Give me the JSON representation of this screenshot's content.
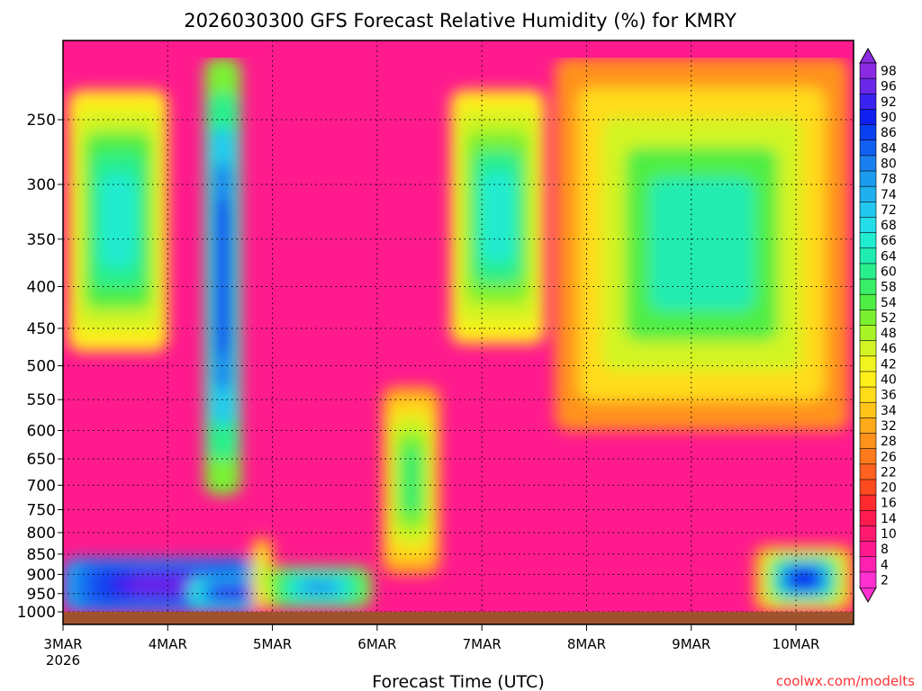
{
  "chart_data": {
    "type": "heatmap",
    "title": "2026030300 GFS Forecast Relative Humidity (%) for KMRY",
    "xlabel": "Forecast Time (UTC)",
    "ylabel": "",
    "x_ticks": [
      "3MAR",
      "4MAR",
      "5MAR",
      "6MAR",
      "7MAR",
      "8MAR",
      "9MAR",
      "10MAR"
    ],
    "x_sub": "2026",
    "x_range_days": [
      0,
      7.55
    ],
    "y_ticks": [
      250,
      300,
      350,
      400,
      450,
      500,
      550,
      600,
      650,
      700,
      750,
      800,
      850,
      900,
      950,
      1000
    ],
    "y_range_hpa": [
      200,
      1000
    ],
    "y_scale": "log-pressure",
    "grid": true,
    "colorbar": {
      "labels": [
        98,
        96,
        92,
        90,
        86,
        84,
        80,
        78,
        74,
        72,
        68,
        66,
        64,
        60,
        58,
        54,
        52,
        48,
        46,
        42,
        40,
        36,
        34,
        32,
        28,
        26,
        22,
        20,
        16,
        14,
        10,
        8,
        4,
        2
      ],
      "colors": [
        "#8a2be2",
        "#6a28e8",
        "#3a22f0",
        "#1020f0",
        "#0a40f0",
        "#1260f0",
        "#1a80f0",
        "#1c9cf0",
        "#20b0f0",
        "#22c8f0",
        "#24dde8",
        "#20ecd0",
        "#20ecb0",
        "#28ee8c",
        "#3aee6a",
        "#50ee44",
        "#7af030",
        "#a8f428",
        "#d2f424",
        "#f2f420",
        "#ffee1a",
        "#ffdc1a",
        "#ffc41a",
        "#ffaa1a",
        "#ff921a",
        "#ff7a1c",
        "#ff621e",
        "#ff4a20",
        "#ff2a30",
        "#ff1a50",
        "#ff1a6e",
        "#ff1a8e",
        "#ff22b0",
        "#ff30d0"
      ]
    },
    "ground_band": "surface",
    "features": [
      {
        "name": "low-level-moist-layer",
        "x": [
          0,
          1.95
        ],
        "p": [
          860,
          1000
        ],
        "rh": [
          78,
          96
        ]
      },
      {
        "name": "moist-layer-4mar",
        "x": [
          1.2,
          2.05
        ],
        "p": [
          905,
          990
        ],
        "rh": [
          66,
          92
        ]
      },
      {
        "name": "dry-slot",
        "x": [
          1.8,
          2.0
        ],
        "p": [
          810,
          1000
        ],
        "rh": [
          30,
          48
        ]
      },
      {
        "name": "upper-moist-band-1",
        "x": [
          0.05,
          1.0
        ],
        "p": [
          230,
          480
        ],
        "rh": [
          40,
          66
        ]
      },
      {
        "name": "deep-plume-4mar",
        "x": [
          1.35,
          1.7
        ],
        "p": [
          210,
          720
        ],
        "rh": [
          50,
          90
        ]
      },
      {
        "name": "moist-5mar-low",
        "x": [
          1.95,
          2.95
        ],
        "p": [
          880,
          990
        ],
        "rh": [
          50,
          76
        ]
      },
      {
        "name": "plume-6mar",
        "x": [
          3.05,
          3.6
        ],
        "p": [
          530,
          900
        ],
        "rh": [
          30,
          58
        ]
      },
      {
        "name": "upper-band-7mar",
        "x": [
          3.7,
          4.6
        ],
        "p": [
          230,
          470
        ],
        "rh": [
          38,
          66
        ]
      },
      {
        "name": "wet-upper-8to10mar",
        "x": [
          4.7,
          7.5
        ],
        "p": [
          210,
          600
        ],
        "rh": [
          28,
          62
        ]
      },
      {
        "name": "moist-10mar-low",
        "x": [
          6.6,
          7.55
        ],
        "p": [
          830,
          1000
        ],
        "rh": [
          30,
          88
        ]
      }
    ]
  },
  "watermark": "coolwx.com/modelts"
}
